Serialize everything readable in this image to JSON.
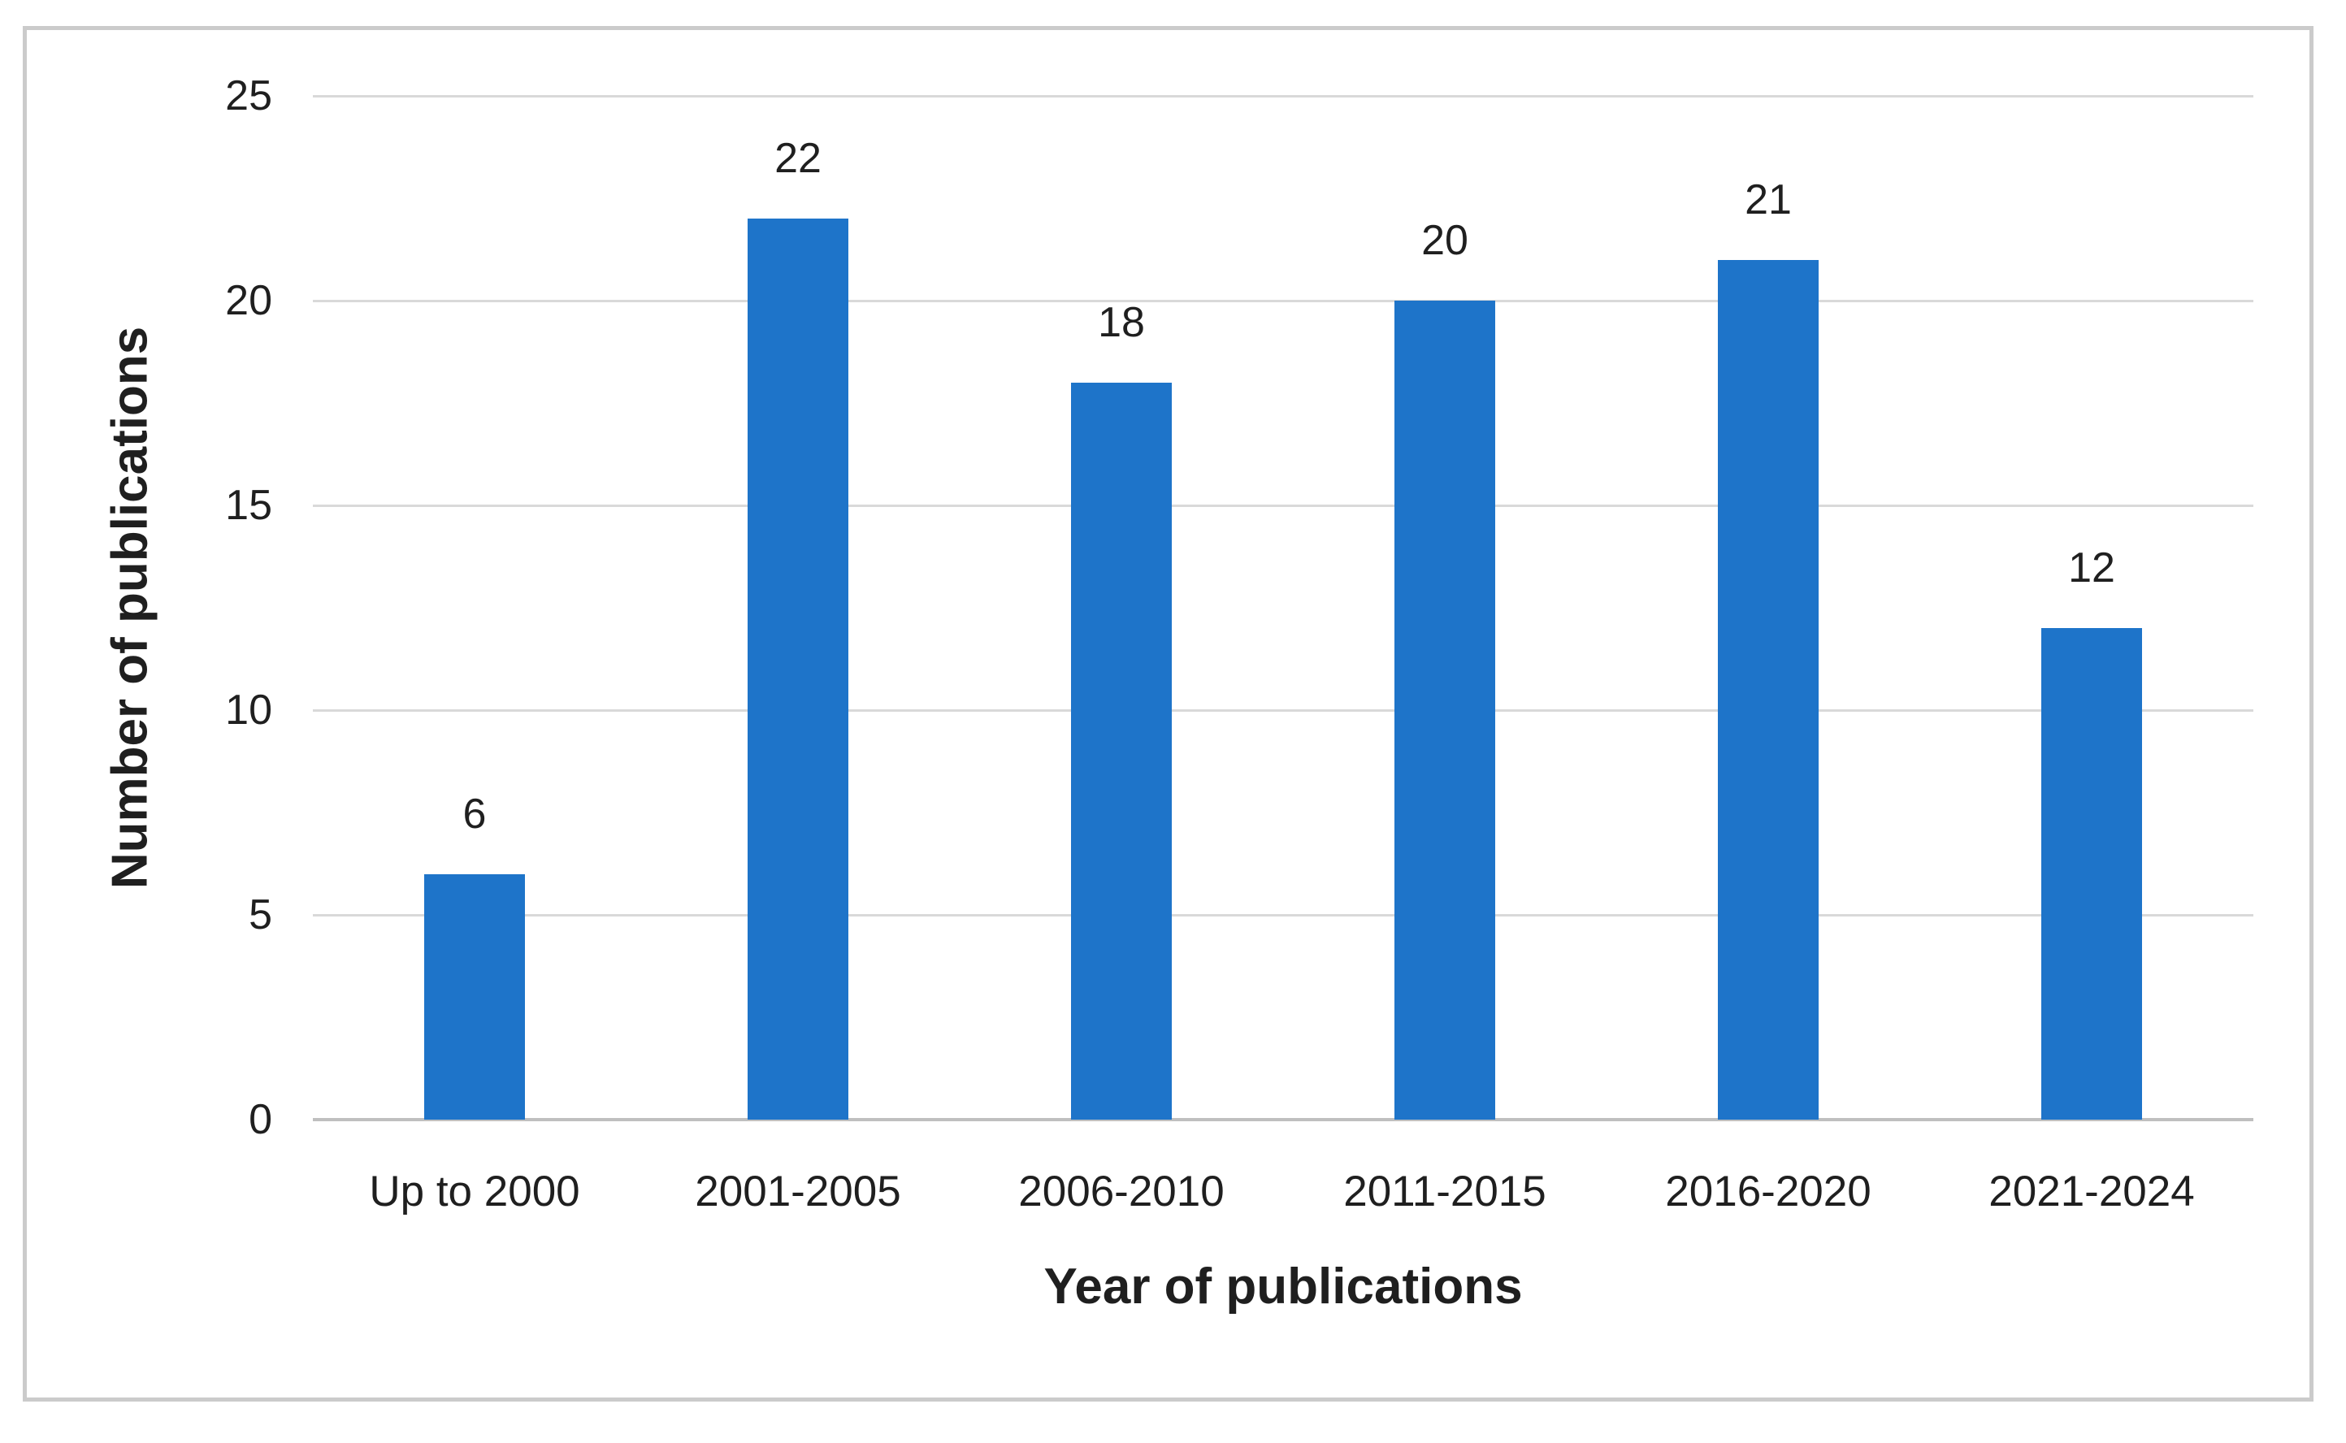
{
  "figure": {
    "background": "#ffffff",
    "frame_border_color": "#cbcbcb"
  },
  "chart_data": {
    "type": "bar",
    "title": "",
    "categories": [
      "Up to 2000",
      "2001-2005",
      "2006-2010",
      "2011-2015",
      "2016-2020",
      "2021-2024"
    ],
    "values": [
      6,
      22,
      18,
      20,
      21,
      12
    ],
    "data_labels": [
      "6",
      "22",
      "18",
      "20",
      "21",
      "12"
    ],
    "xlabel": "Year of publications",
    "ylabel": "Number of publications",
    "ylim": [
      0,
      25
    ],
    "yticks": [
      0,
      5,
      10,
      15,
      20,
      25
    ],
    "grid": "horizontal-only",
    "legend": "none",
    "bar_color": "#1e74c9",
    "gridline_color": "#d9d9d9",
    "axis_line_color": "#bfbfbf",
    "text_color": "#1f1f1f"
  }
}
